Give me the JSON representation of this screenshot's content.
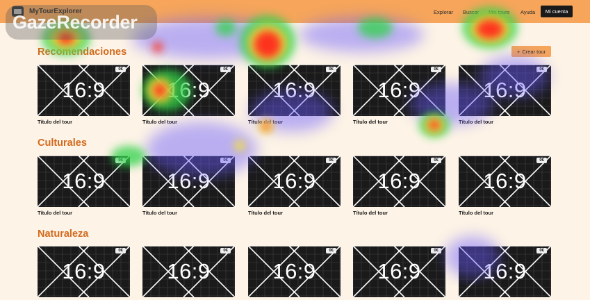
{
  "navbar": {
    "brand_name": "MyTourExplorer",
    "links": [
      "Explorar",
      "Buscar",
      "Mis tours",
      "Ayuda"
    ],
    "account_label": "Mi cuenta",
    "background": "#f6a55a"
  },
  "create_button": {
    "icon": "plus-icon",
    "label": "Crear tour"
  },
  "sections": [
    {
      "title": "Recomendaciones",
      "tours": [
        {
          "title": "Título del tour",
          "price": "0€",
          "ratio": "16:9"
        },
        {
          "title": "Título del tour",
          "price": "0€",
          "ratio": "16:9"
        },
        {
          "title": "Título del tour",
          "price": "0€",
          "ratio": "16:9"
        },
        {
          "title": "Título del tour",
          "price": "0€",
          "ratio": "16:9"
        },
        {
          "title": "Título del tour",
          "price": "0€",
          "ratio": "16:9"
        }
      ]
    },
    {
      "title": "Culturales",
      "tours": [
        {
          "title": "Título del tour",
          "price": "0€",
          "ratio": "16:9"
        },
        {
          "title": "Título del tour",
          "price": "0€",
          "ratio": "16:9"
        },
        {
          "title": "Título del tour",
          "price": "0€",
          "ratio": "16:9"
        },
        {
          "title": "Título del tour",
          "price": "0€",
          "ratio": "16:9"
        },
        {
          "title": "Título del tour",
          "price": "0€",
          "ratio": "16:9"
        }
      ]
    },
    {
      "title": "Naturaleza",
      "tours": [
        {
          "title": "",
          "price": "0€",
          "ratio": "16:9"
        },
        {
          "title": "",
          "price": "0€",
          "ratio": "16:9"
        },
        {
          "title": "",
          "price": "0€",
          "ratio": "16:9"
        },
        {
          "title": "",
          "price": "0€",
          "ratio": "16:9"
        },
        {
          "title": "",
          "price": "0€",
          "ratio": "16:9"
        }
      ]
    }
  ],
  "watermark": {
    "text": "GazeRecorder"
  },
  "colors": {
    "accent": "#d46a1e",
    "page_background": "#fdf3e6",
    "thumb_background": "#1a1a1a"
  }
}
